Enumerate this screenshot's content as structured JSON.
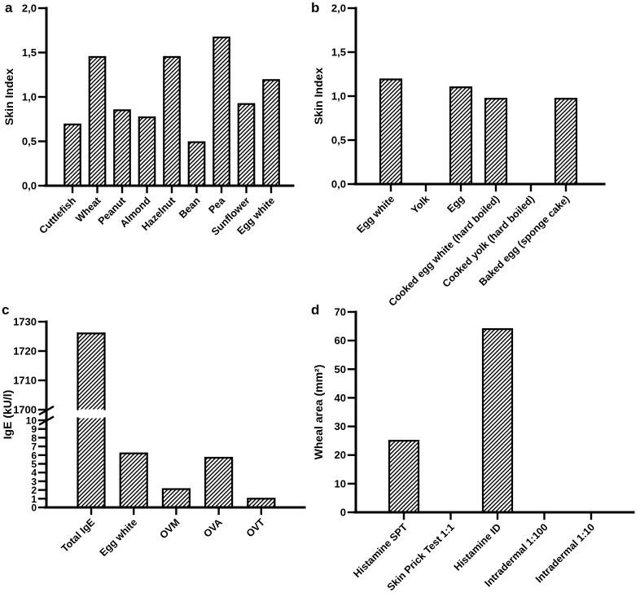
{
  "figure": {
    "background_color": "#ffffff",
    "ink_color": "#000000",
    "bar_fill": "#ffffff",
    "hatch_style": "diagonal-forward"
  },
  "chart_data": [
    {
      "panel_label": "a",
      "type": "bar",
      "title": "",
      "ylabel": "Skin Index",
      "xlabel": "",
      "categories": [
        "Cuttlefish",
        "Wheat",
        "Peanut",
        "Almond",
        "Hazelnut",
        "Bean",
        "Pea",
        "Sunflower",
        "Egg white"
      ],
      "values": [
        0.69,
        1.45,
        0.85,
        0.77,
        1.45,
        0.49,
        1.67,
        0.92,
        1.19
      ],
      "ylim": [
        0,
        2
      ],
      "yticks": [
        0,
        0.5,
        1.0,
        1.5,
        2.0
      ],
      "ytick_labels": [
        "0,0",
        "0,5",
        "1,0",
        "1,5",
        "2,0"
      ],
      "grid": false,
      "legend": null
    },
    {
      "panel_label": "b",
      "type": "bar",
      "title": "",
      "ylabel": "Skin Index",
      "xlabel": "",
      "categories": [
        "Egg white",
        "Yolk",
        "Egg",
        "Cooked egg white (hard boiled)",
        "Cooked yolk (hard boiled)",
        "Baked egg (sponge cake)"
      ],
      "values": [
        1.19,
        0,
        1.1,
        0.97,
        0,
        0.97
      ],
      "ylim": [
        0,
        2
      ],
      "yticks": [
        0,
        0.5,
        1.0,
        1.5,
        2.0
      ],
      "ytick_labels": [
        "0,0",
        "0,5",
        "1,0",
        "1,5",
        "2,0"
      ],
      "grid": false,
      "legend": null
    },
    {
      "panel_label": "c",
      "type": "bar-broken-axis",
      "title": "",
      "ylabel": "IgE (kU/l)",
      "xlabel": "",
      "categories": [
        "Total IgE",
        "Egg white",
        "OVM",
        "OVA",
        "OVT"
      ],
      "values": [
        1726,
        6.2,
        2.1,
        5.7,
        1.0
      ],
      "axis_segments": [
        {
          "ylim": [
            0,
            10
          ],
          "yticks": [
            0,
            1,
            2,
            3,
            4,
            5,
            6,
            7,
            8,
            9,
            10
          ],
          "ytick_labels": [
            "0",
            "1",
            "2",
            "3",
            "4",
            "5",
            "6",
            "7",
            "8",
            "9",
            "10"
          ]
        },
        {
          "ylim": [
            1700,
            1730
          ],
          "yticks": [
            1700,
            1710,
            1720,
            1730
          ],
          "ytick_labels": [
            "1700",
            "1710",
            "1720",
            "1730"
          ]
        }
      ],
      "grid": false,
      "legend": null
    },
    {
      "panel_label": "d",
      "type": "bar",
      "title": "",
      "ylabel": "Wheal area (mm²)",
      "xlabel": "",
      "categories": [
        "Histamine SPT",
        "Skin Prick Test 1:1",
        "Histamine ID",
        "Intradermal 1:100",
        "Intradermal 1:10"
      ],
      "values": [
        25,
        0,
        64,
        0,
        0
      ],
      "ylim": [
        0,
        70
      ],
      "yticks": [
        0,
        10,
        20,
        30,
        40,
        50,
        60,
        70
      ],
      "ytick_labels": [
        "0",
        "10",
        "20",
        "30",
        "40",
        "50",
        "60",
        "70"
      ],
      "grid": false,
      "legend": null
    }
  ]
}
